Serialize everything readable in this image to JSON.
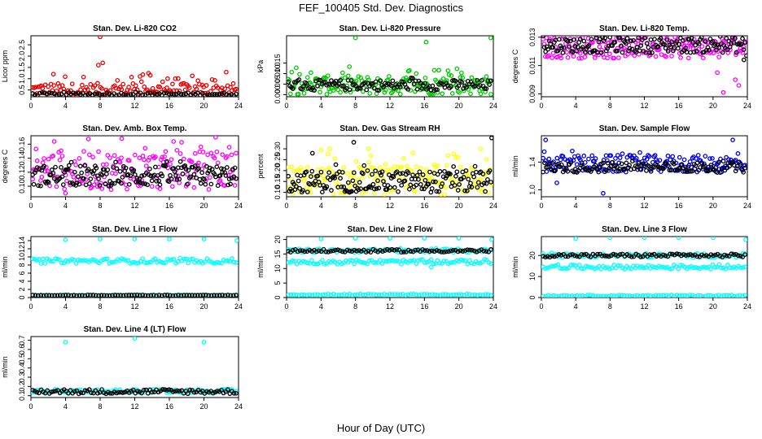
{
  "figure": {
    "title": "FEF_100405  Std. Dev. Diagnostics",
    "xlabel": "Hour of Day (UTC)"
  },
  "chart_data": [
    {
      "type": "scatter",
      "title": "Stan. Dev. Li-820 CO2",
      "ylabel": "Licor ppm",
      "xlim": [
        0,
        24
      ],
      "ylim": [
        0.2,
        2.9
      ],
      "x_ticks": [
        0,
        4,
        8,
        12,
        16,
        20,
        24
      ],
      "y_ticks": [
        0.5,
        1.0,
        1.5,
        2.0,
        2.5
      ],
      "y_tick_labels": [
        "0.5",
        "1.0",
        "1.5",
        "2.0",
        "2.5"
      ],
      "series": [
        {
          "color": "#ee0000",
          "band": [
            0.25,
            0.8
          ],
          "spread": 0.9,
          "outliers": [
            [
              8.0,
              2.85
            ],
            [
              7.8,
              1.6
            ],
            [
              8.3,
              1.7
            ],
            [
              2.6,
              1.2
            ],
            [
              13.8,
              1.15
            ],
            [
              15.8,
              1.0
            ]
          ]
        },
        {
          "color": "#000000",
          "band": [
            0.26,
            0.38
          ],
          "spread": 0.3,
          "outliers": []
        }
      ]
    },
    {
      "type": "scatter",
      "title": "Stan. Dev. Li-820 Pressure",
      "ylabel": "kPa",
      "xlim": [
        0,
        24
      ],
      "ylim": [
        -0.001,
        0.028
      ],
      "x_ticks": [
        0,
        4,
        8,
        12,
        16,
        20,
        24
      ],
      "y_ticks": [
        0.0,
        0.005,
        0.01,
        0.015
      ],
      "y_tick_labels": [
        "0.000",
        "0.005",
        "0.010",
        "0.015"
      ],
      "series": [
        {
          "color": "#00cc00",
          "band": [
            0.0,
            0.009
          ],
          "spread": 0.5,
          "outliers": [
            [
              8.0,
              0.027
            ],
            [
              16.2,
              0.025
            ],
            [
              23.7,
              0.027
            ]
          ]
        },
        {
          "color": "#000000",
          "band": [
            0.002,
            0.007
          ],
          "spread": 0.2,
          "outliers": []
        }
      ]
    },
    {
      "type": "scatter",
      "title": "Stan. Dev. Li-820 Temp.",
      "ylabel": "degrees C",
      "xlim": [
        0,
        24
      ],
      "ylim": [
        0.0088,
        0.0131
      ],
      "x_ticks": [
        0,
        4,
        8,
        12,
        16,
        20,
        24
      ],
      "y_ticks": [
        0.009,
        0.011,
        0.013
      ],
      "y_tick_labels": [
        "0.009",
        "0.011",
        "0.013"
      ],
      "series": [
        {
          "color": "#ff00ff",
          "band": [
            0.0115,
            0.013
          ],
          "spread": 0.1,
          "outliers": [
            [
              21.2,
              0.0091
            ],
            [
              23.0,
              0.0096
            ],
            [
              22.6,
              0.01
            ],
            [
              20.5,
              0.0105
            ]
          ]
        },
        {
          "color": "#000000",
          "band": [
            0.0119,
            0.013
          ],
          "spread": 0.1,
          "outliers": [
            [
              23.6,
              0.0114
            ],
            [
              23.9,
              0.0117
            ]
          ]
        }
      ]
    },
    {
      "type": "scatter",
      "title": "Stan. Dev. Amb. Box Temp.",
      "ylabel": "degrees C",
      "xlim": [
        0,
        24
      ],
      "ylim": [
        0.085,
        0.172
      ],
      "x_ticks": [
        0,
        4,
        8,
        12,
        16,
        20,
        24
      ],
      "y_ticks": [
        0.1,
        0.12,
        0.14,
        0.16
      ],
      "y_tick_labels": [
        "0.10",
        "0.12",
        "0.14",
        "0.16"
      ],
      "series": [
        {
          "color": "#ff00ff",
          "band": [
            0.095,
            0.15
          ],
          "spread": 0.5,
          "outliers": [
            [
              10.5,
              0.168
            ],
            [
              4.0,
              0.09
            ]
          ]
        },
        {
          "color": "#000000",
          "band": [
            0.1,
            0.13
          ],
          "spread": 0.2,
          "outliers": []
        }
      ]
    },
    {
      "type": "scatter",
      "title": "Stan. Dev. Gas Stream RH",
      "ylabel": "percent",
      "xlim": [
        0,
        24
      ],
      "ylim": [
        0.08,
        0.36
      ],
      "x_ticks": [
        0,
        4,
        8,
        12,
        16,
        20,
        24
      ],
      "y_ticks": [
        0.1,
        0.15,
        0.2,
        0.25,
        0.3
      ],
      "y_tick_labels": [
        "0.10",
        "0.15",
        "0.20",
        "0.25",
        "0.30"
      ],
      "series": [
        {
          "color": "#ffff00",
          "band": [
            0.09,
            0.22
          ],
          "spread": 0.6,
          "outliers": [
            [
              5.0,
              0.3
            ],
            [
              9.5,
              0.3
            ],
            [
              22.5,
              0.3
            ]
          ]
        },
        {
          "color": "#000000",
          "band": [
            0.1,
            0.2
          ],
          "spread": 0.3,
          "outliers": [
            [
              7.8,
              0.33
            ],
            [
              23.8,
              0.35
            ],
            [
              3.0,
              0.28
            ]
          ]
        }
      ]
    },
    {
      "type": "scatter",
      "title": "Stan. Dev. Sample Flow",
      "ylabel": "ml/min",
      "xlim": [
        0,
        24
      ],
      "ylim": [
        0.9,
        1.78
      ],
      "x_ticks": [
        0,
        4,
        8,
        12,
        16,
        20,
        24
      ],
      "y_ticks": [
        1.0,
        1.4
      ],
      "y_tick_labels": [
        "1.0",
        "1.4"
      ],
      "series": [
        {
          "color": "#0000ee",
          "band": [
            1.25,
            1.5
          ],
          "spread": 0.3,
          "outliers": [
            [
              7.2,
              0.95
            ],
            [
              0.5,
              1.72
            ],
            [
              22.3,
              1.72
            ],
            [
              1.8,
              1.1
            ]
          ]
        },
        {
          "color": "#000000",
          "band": [
            1.25,
            1.4
          ],
          "spread": 0.1,
          "outliers": []
        }
      ]
    },
    {
      "type": "scatter",
      "title": "Stan. Dev. Line 1 Flow",
      "ylabel": "ml/min",
      "xlim": [
        0,
        24
      ],
      "ylim": [
        0,
        15
      ],
      "x_ticks": [
        0,
        4,
        8,
        12,
        16,
        20,
        24
      ],
      "y_ticks": [
        0,
        2,
        4,
        6,
        8,
        10,
        12,
        14
      ],
      "y_tick_labels": [
        "0",
        "2",
        "4",
        "6",
        "8",
        "10",
        "12",
        "14"
      ],
      "series": [
        {
          "color": "#00ffff",
          "band": [
            8.4,
            9.6
          ],
          "spread": 0.1,
          "outliers": [
            [
              4.0,
              14.2
            ],
            [
              8.0,
              14.4
            ],
            [
              12.0,
              14.4
            ],
            [
              16.0,
              14.4
            ],
            [
              20.0,
              14.4
            ],
            [
              23.8,
              14.0
            ]
          ]
        },
        {
          "color": "#00ffff",
          "band": [
            0.5,
            0.7
          ],
          "spread": 0.05,
          "outliers": []
        },
        {
          "color": "#000000",
          "band": [
            0.45,
            0.65
          ],
          "spread": 0.05,
          "outliers": []
        }
      ]
    },
    {
      "type": "scatter",
      "title": "Stan. Dev. Line 2 Flow",
      "ylabel": "ml/min",
      "xlim": [
        0,
        24
      ],
      "ylim": [
        0,
        21
      ],
      "x_ticks": [
        0,
        4,
        8,
        12,
        16,
        20,
        24
      ],
      "y_ticks": [
        0,
        5,
        10,
        15,
        20
      ],
      "y_tick_labels": [
        "0",
        "5",
        "10",
        "15",
        "20"
      ],
      "series": [
        {
          "color": "#00ffff",
          "band": [
            15.5,
            16.8
          ],
          "spread": 0.1,
          "outliers": [
            [
              4.0,
              20.2
            ],
            [
              8.0,
              20.4
            ],
            [
              12.0,
              20.4
            ],
            [
              16.0,
              20.4
            ],
            [
              20.0,
              20.4
            ],
            [
              23.8,
              20.0
            ]
          ]
        },
        {
          "color": "#00ffff",
          "band": [
            11.5,
            13.0
          ],
          "spread": 0.1,
          "outliers": [
            [
              16.8,
              10.5
            ]
          ]
        },
        {
          "color": "#00ffff",
          "band": [
            0.8,
            1.2
          ],
          "spread": 0.05,
          "outliers": []
        },
        {
          "color": "#000000",
          "band": [
            15.6,
            16.6
          ],
          "spread": 0.05,
          "outliers": []
        }
      ]
    },
    {
      "type": "scatter",
      "title": "Stan. Dev. Line 3 Flow",
      "ylabel": "ml/min",
      "xlim": [
        0,
        24
      ],
      "ylim": [
        0,
        29
      ],
      "x_ticks": [
        0,
        4,
        8,
        12,
        16,
        20,
        24
      ],
      "y_ticks": [
        0,
        10,
        20
      ],
      "y_tick_labels": [
        "0",
        "10",
        "20"
      ],
      "series": [
        {
          "color": "#00ffff",
          "band": [
            19.0,
            21.0
          ],
          "spread": 0.1,
          "outliers": [
            [
              4.0,
              28.0
            ],
            [
              8.0,
              28.5
            ],
            [
              12.0,
              28.5
            ],
            [
              16.0,
              28.5
            ],
            [
              20.0,
              28.5
            ],
            [
              23.8,
              27.5
            ]
          ]
        },
        {
          "color": "#00ffff",
          "band": [
            13.5,
            15.5
          ],
          "spread": 0.1,
          "outliers": []
        },
        {
          "color": "#00ffff",
          "band": [
            0.6,
            1.2
          ],
          "spread": 0.05,
          "outliers": []
        },
        {
          "color": "#000000",
          "band": [
            19.2,
            20.8
          ],
          "spread": 0.05,
          "outliers": []
        }
      ]
    },
    {
      "type": "scatter",
      "title": "Stan. Dev. Line 4 (LT) Flow",
      "ylabel": "ml/min",
      "xlim": [
        0,
        24
      ],
      "ylim": [
        0.08,
        0.74
      ],
      "x_ticks": [
        0,
        4,
        8,
        12,
        16,
        20,
        24
      ],
      "y_ticks": [
        0.1,
        0.2,
        0.3,
        0.4,
        0.5,
        0.6,
        0.7
      ],
      "y_tick_labels": [
        "0.1",
        "0.2",
        "0.3",
        "0.4",
        "0.5",
        "0.6",
        "0.7"
      ],
      "series": [
        {
          "color": "#00ffff",
          "band": [
            0.13,
            0.17
          ],
          "spread": 0.1,
          "outliers": [
            [
              4.0,
              0.68
            ],
            [
              12.0,
              0.72
            ],
            [
              20.0,
              0.68
            ]
          ]
        },
        {
          "color": "#000000",
          "band": [
            0.12,
            0.17
          ],
          "spread": 0.05,
          "outliers": []
        }
      ]
    }
  ]
}
